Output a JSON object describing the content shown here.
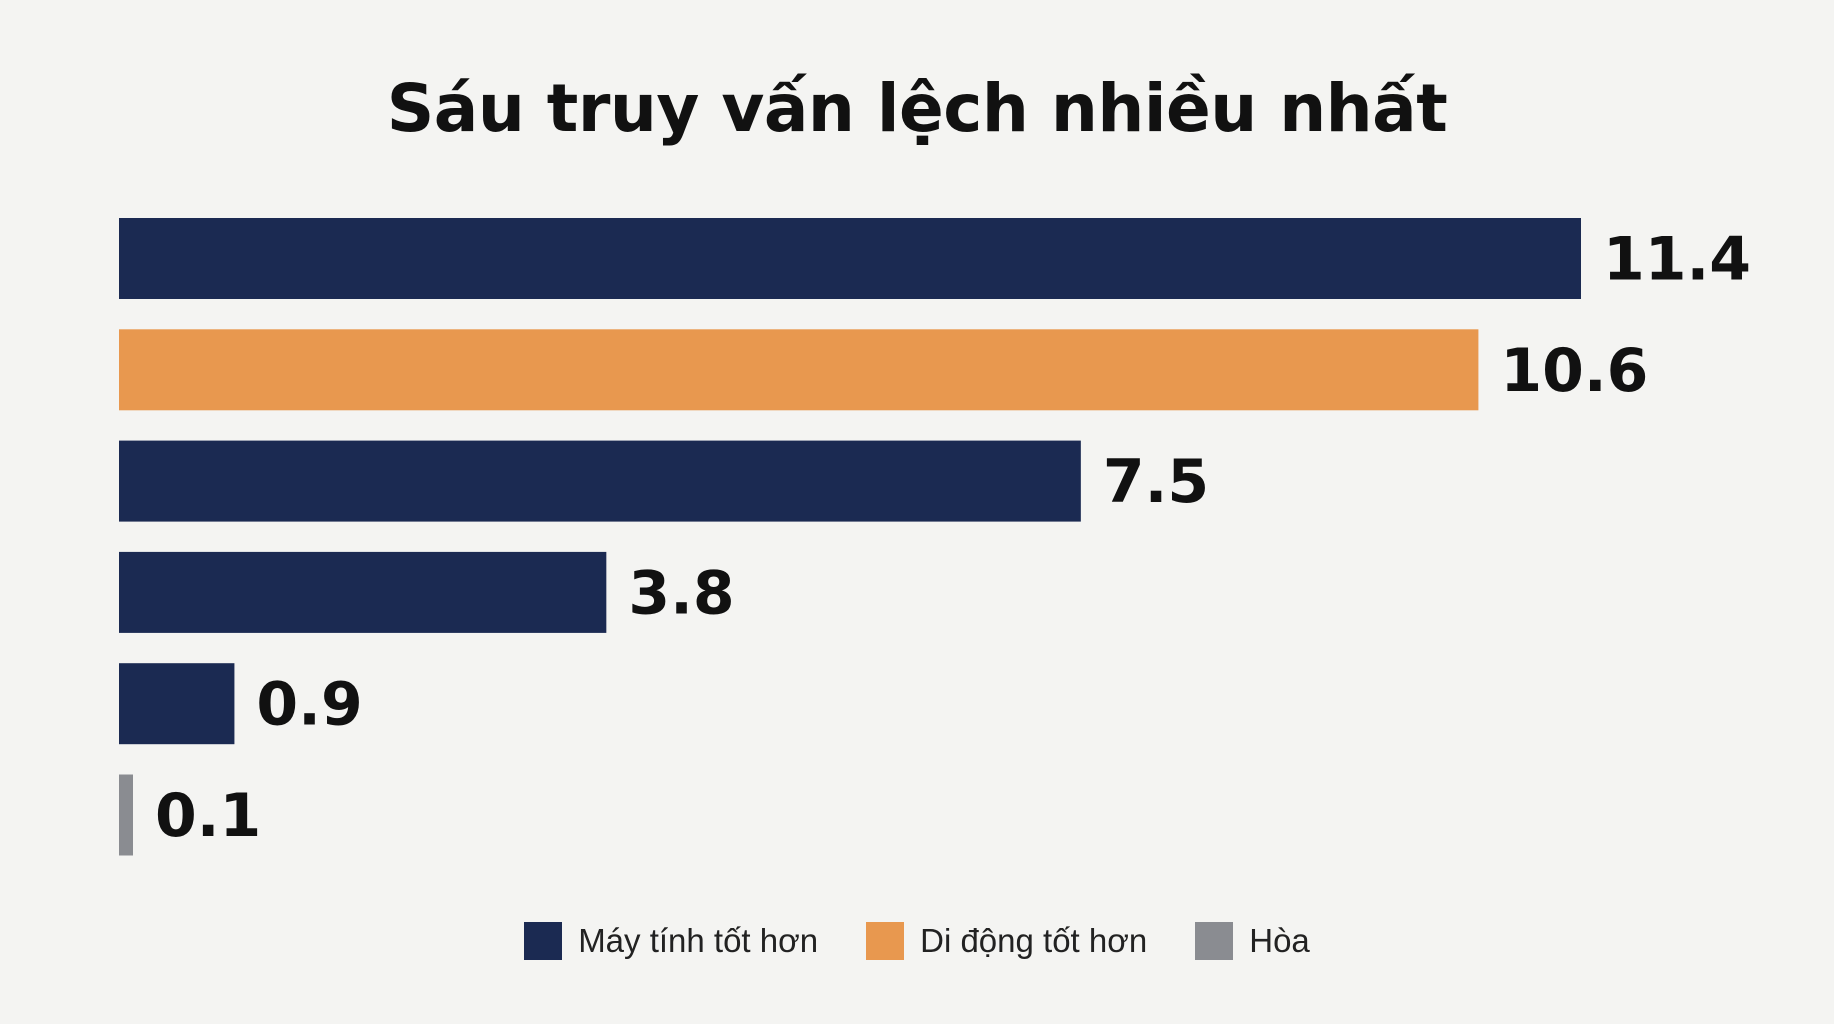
{
  "chart_data": {
    "type": "bar",
    "orientation": "horizontal",
    "title": "Sáu truy vấn lệch nhiều nhất",
    "values": [
      11.4,
      10.6,
      7.5,
      3.8,
      0.9,
      0.1
    ],
    "labels": [
      "11.4",
      "10.6",
      "7.5",
      "3.8",
      "0.9",
      "0.1"
    ],
    "bar_series": [
      "desktop",
      "mobile",
      "desktop",
      "desktop",
      "desktop",
      "tie"
    ],
    "series": [
      {
        "key": "desktop",
        "name": "Máy tính tốt hơn",
        "color": "#1b2a52"
      },
      {
        "key": "mobile",
        "name": "Di động tốt hơn",
        "color": "#e8984f"
      },
      {
        "key": "tie",
        "name": "Hòa",
        "color": "#8a8c91"
      }
    ],
    "xlim": [
      0,
      11.4
    ],
    "grid": false,
    "legend_position": "bottom-center"
  }
}
